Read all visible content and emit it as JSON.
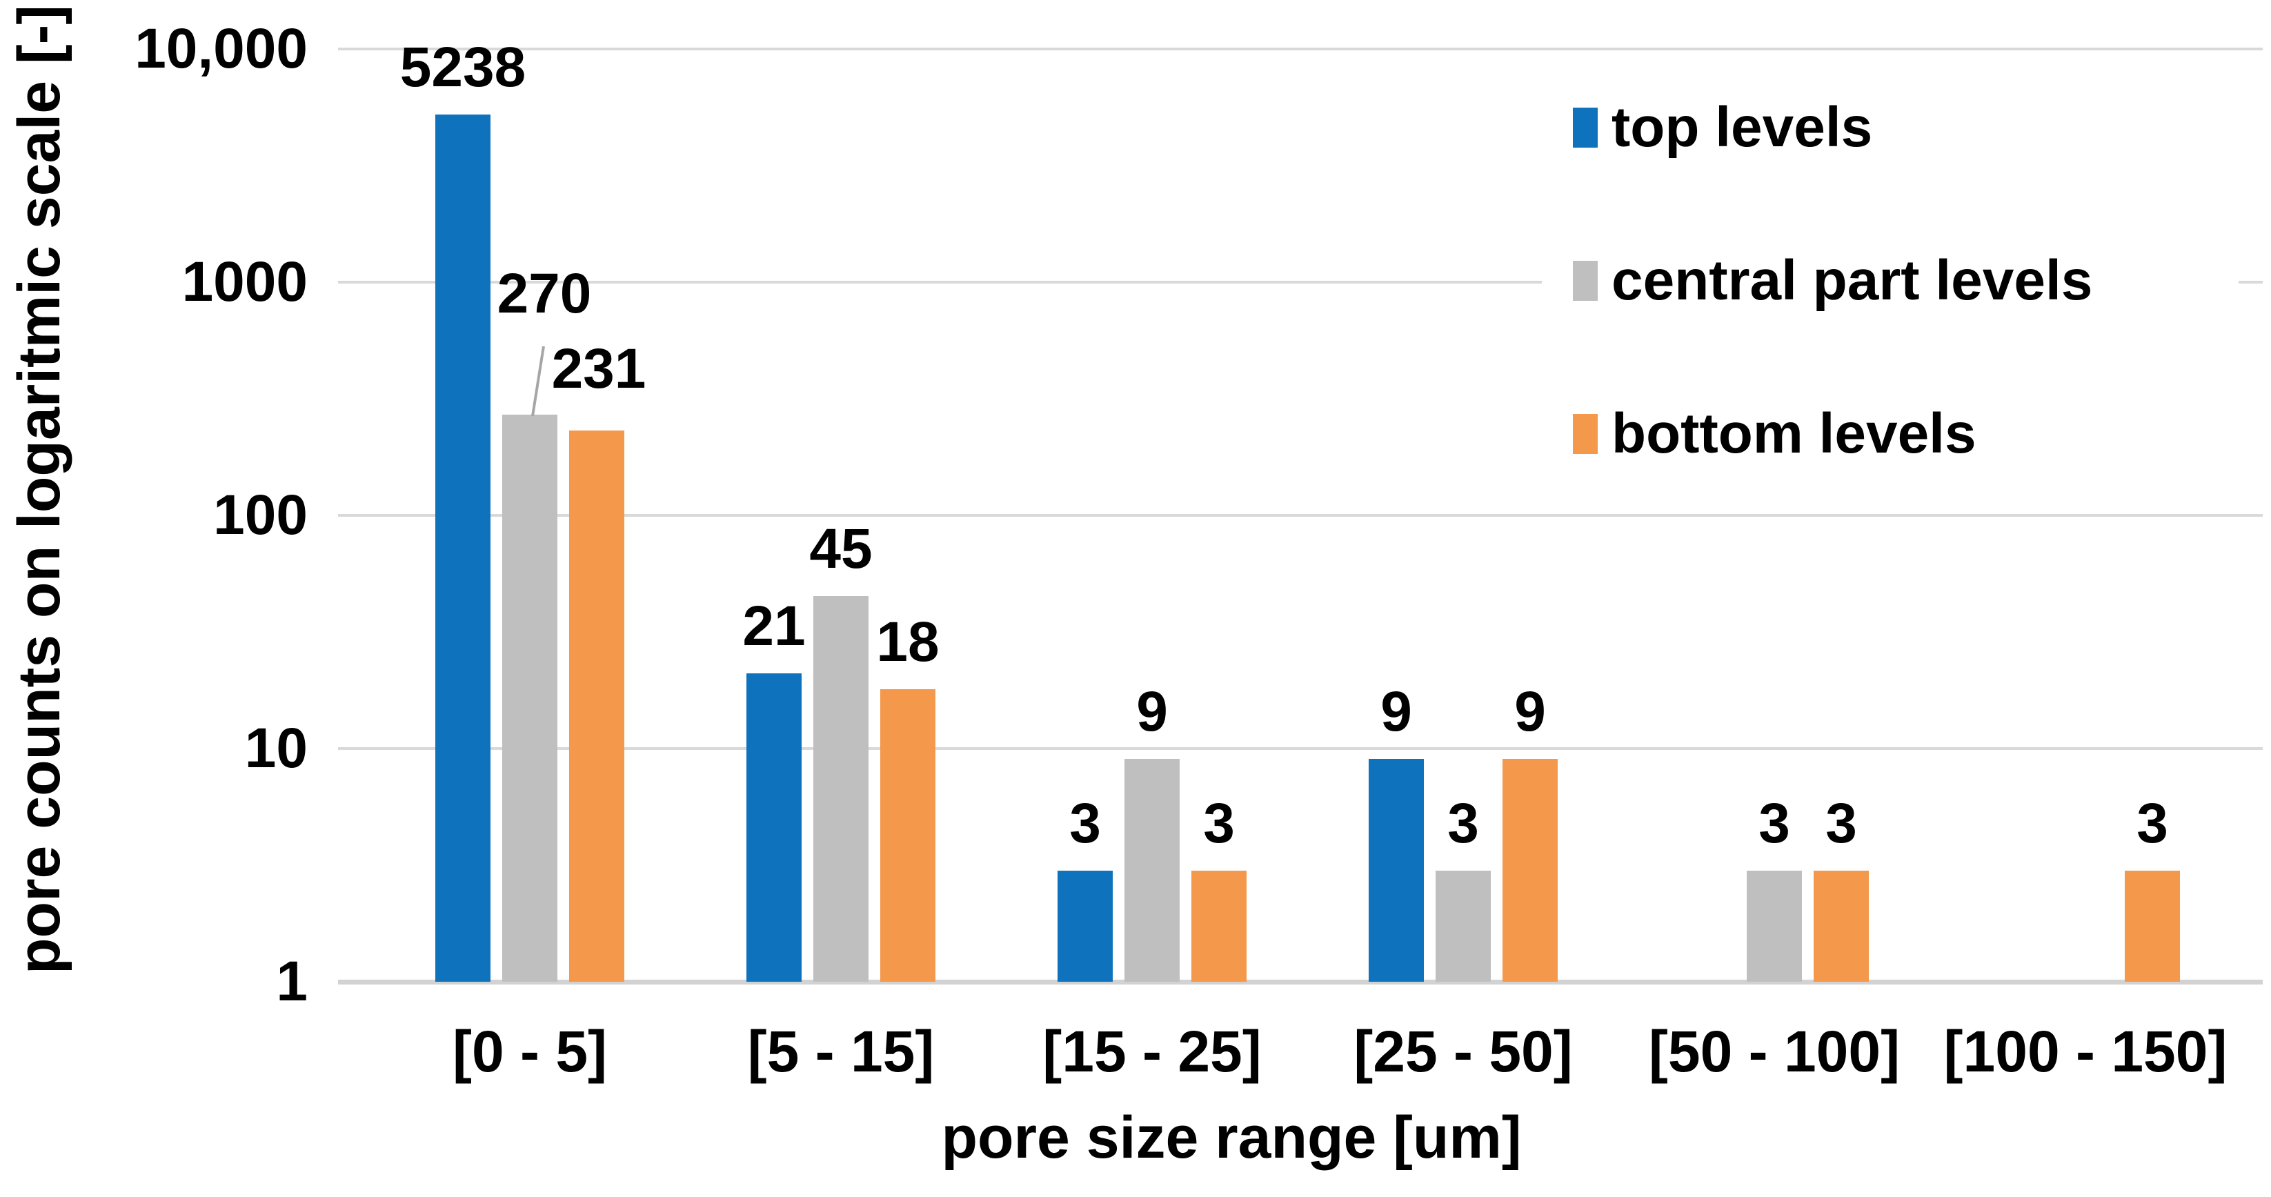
{
  "chart_data": {
    "type": "bar",
    "title": "",
    "xlabel": "pore size range [um]",
    "ylabel": "pore counts on logaritmic scale [-]",
    "y_scale": "log",
    "ylim": [
      1,
      10000
    ],
    "grid": true,
    "legend_position": "upper-right",
    "data_labels_shown": true,
    "categories": [
      "[0 - 5]",
      "[5 - 15]",
      "[15 - 25]",
      "[25 - 50]",
      "[50 - 100]",
      "[100 - 150]"
    ],
    "series": [
      {
        "name": "top levels",
        "color": "#0f72bc",
        "values": [
          5238,
          21,
          3,
          9,
          null,
          null
        ]
      },
      {
        "name": "central part levels",
        "color": "#bfbfbf",
        "values": [
          270,
          45,
          9,
          3,
          3,
          null
        ]
      },
      {
        "name": "bottom levels",
        "color": "#f4984c",
        "values": [
          231,
          18,
          3,
          9,
          3,
          3
        ]
      }
    ],
    "y_ticks": [
      {
        "value": 10000,
        "label": "10,000"
      },
      {
        "value": 1000,
        "label": "1000"
      },
      {
        "value": 100,
        "label": "100"
      },
      {
        "value": 10,
        "label": "10"
      },
      {
        "value": 1,
        "label": "1"
      }
    ],
    "colors": {
      "gridline": "#d9d9d9",
      "leader_line": "#a6a6a6",
      "text": "#000000",
      "background": "#ffffff"
    }
  }
}
